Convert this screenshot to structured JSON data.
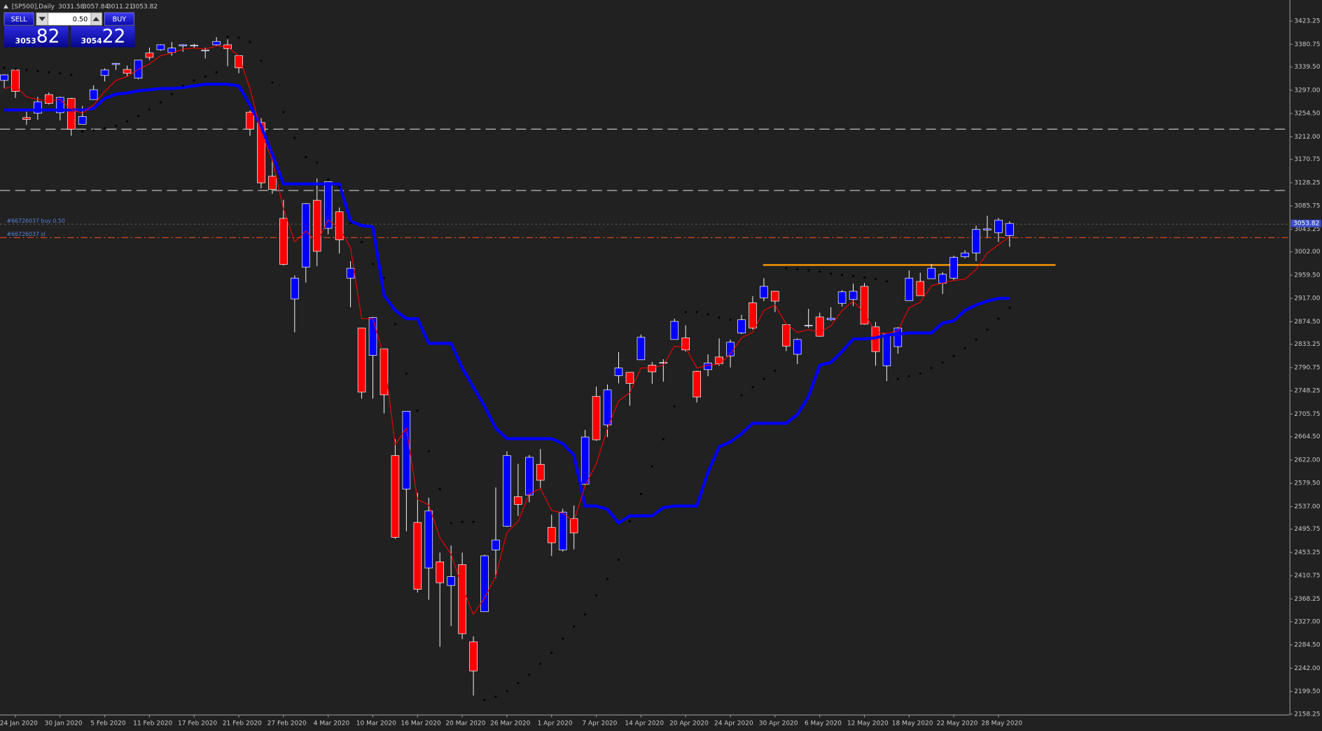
{
  "chart_data": {
    "type": "candlestick",
    "title": "[SP500],Daily",
    "categories": [
      null,
      "24 Jan 2020",
      null,
      null,
      null,
      "30 Jan 2020",
      null,
      null,
      null,
      "5 Feb 2020",
      null,
      null,
      null,
      "11 Feb 2020",
      null,
      null,
      null,
      "17 Feb 2020",
      null,
      null,
      null,
      "21 Feb 2020",
      null,
      null,
      null,
      "27 Feb 2020",
      null,
      null,
      null,
      "4 Mar 2020",
      null,
      null,
      null,
      "10 Mar 2020",
      null,
      null,
      null,
      "16 Mar 2020",
      null,
      null,
      null,
      "20 Mar 2020",
      null,
      null,
      null,
      "26 Mar 2020",
      null,
      null,
      null,
      "1 Apr 2020",
      null,
      null,
      null,
      "7 Apr 2020",
      null,
      null,
      null,
      "14 Apr 2020",
      null,
      null,
      null,
      "20 Apr 2020",
      null,
      null,
      null,
      "24 Apr 2020",
      null,
      null,
      null,
      "30 Apr 2020",
      null,
      null,
      null,
      "6 May 2020",
      null,
      null,
      null,
      "12 May 2020",
      null,
      null,
      null,
      "18 May 2020",
      null,
      null,
      null,
      "22 May 2020",
      null,
      null,
      null,
      "28 May 2020",
      null
    ],
    "open": [
      3315,
      3334,
      3247,
      3255,
      3289,
      3256,
      3282,
      3235,
      3280,
      3324,
      3344,
      3335,
      3319,
      3365,
      3371,
      3366,
      3378,
      3378,
      3370,
      3380,
      3380,
      3360,
      3257,
      3238,
      3140,
      3063,
      2916,
      2974,
      3096,
      3045,
      3075,
      2954,
      2863,
      2813,
      2825,
      2630,
      2569,
      2508,
      2425,
      2436,
      2393,
      2431,
      2290,
      2345,
      2458,
      2501,
      2555,
      2558,
      2614,
      2499,
      2458,
      2515,
      2578,
      2738,
      2686,
      2776,
      2782,
      2805,
      2795,
      2799,
      2842,
      2845,
      2784,
      2787,
      2810,
      2812,
      2854,
      2909,
      2918,
      2930,
      2869,
      2815,
      2868,
      2883,
      2878,
      2908,
      2915,
      2939,
      2865,
      2794,
      2829,
      2913,
      2948,
      2953,
      2945,
      2954,
      2993,
      3000,
      3042,
      3037,
      3031.58
    ],
    "high": [
      3326,
      3338,
      3258,
      3285,
      3293,
      3285,
      3283,
      3268,
      3306,
      3337,
      3347,
      3342,
      3352,
      3375,
      3381,
      3385,
      3381,
      3382,
      3375,
      3394,
      3390,
      3361,
      3260,
      3246,
      3182,
      3097,
      2959,
      3091,
      3136,
      3130,
      3083,
      2985,
      2863,
      2883,
      2825,
      2660,
      2711,
      2562,
      2553,
      2453,
      2466,
      2453,
      2300,
      2449,
      2572,
      2638,
      2615,
      2631,
      2642,
      2522,
      2533,
      2539,
      2677,
      2756,
      2760,
      2819,
      2782,
      2851,
      2801,
      2806,
      2880,
      2868,
      2785,
      2815,
      2844,
      2842,
      2887,
      2921,
      2954,
      2930,
      2869,
      2844,
      2898,
      2891,
      2901,
      2932,
      2944,
      2945,
      2874,
      2852,
      2865,
      2968,
      2964,
      2980,
      2965,
      2995,
      3005,
      3050,
      3068,
      3064,
      3057.84
    ],
    "low": [
      3301,
      3283,
      3234,
      3243,
      3271,
      3242,
      3214,
      3235,
      3280,
      3313,
      3334,
      3322,
      3317,
      3352,
      3369,
      3360,
      3367,
      3374,
      3355,
      3379,
      3341,
      3328,
      3214,
      3118,
      3108,
      2977,
      2855,
      2946,
      2976,
      3034,
      2999,
      2901,
      2734,
      2734,
      2707,
      2478,
      2492,
      2380,
      2367,
      2281,
      2319,
      2295,
      2192,
      2345,
      2407,
      2500,
      2520,
      2545,
      2571,
      2447,
      2455,
      2459,
      2574,
      2657,
      2664,
      2762,
      2721,
      2805,
      2761,
      2765,
      2842,
      2820,
      2727,
      2775,
      2794,
      2791,
      2852,
      2860,
      2912,
      2892,
      2821,
      2797,
      2863,
      2847,
      2876,
      2902,
      2903,
      2869,
      2794,
      2766,
      2816,
      2913,
      2922,
      2953,
      2925,
      2950,
      2990,
      2985,
      3028,
      3020,
      3011.21
    ],
    "close": [
      3325,
      3295,
      3244,
      3276,
      3273,
      3284,
      3226,
      3249,
      3298,
      3334,
      3346,
      3328,
      3352,
      3357,
      3380,
      3374,
      3380,
      3379,
      3370,
      3386,
      3373,
      3338,
      3226,
      3128,
      3116,
      2979,
      2954,
      3090,
      3003,
      3130,
      3024,
      2972,
      2746,
      2882,
      2741,
      2481,
      2711,
      2386,
      2529,
      2398,
      2409,
      2305,
      2237,
      2447,
      2476,
      2630,
      2541,
      2627,
      2585,
      2471,
      2527,
      2489,
      2664,
      2659,
      2750,
      2790,
      2762,
      2846,
      2783,
      2800,
      2875,
      2823,
      2737,
      2799,
      2798,
      2837,
      2878,
      2863,
      2939,
      2912,
      2830,
      2842,
      2868,
      2848,
      2881,
      2929,
      2930,
      2870,
      2820,
      2852,
      2863,
      2954,
      2922,
      2972,
      2961,
      2992,
      3000,
      3043,
      3044,
      3060,
      3053.82
    ],
    "up_color": "#0000ff",
    "down_color": "#ff0000",
    "wick_color": "#ffffff",
    "lines": [
      {
        "color": "#0000ff",
        "style": "thick",
        "values": [
          3261,
          3261,
          3261,
          3261,
          3261,
          3261,
          3261,
          3261,
          3264,
          3282,
          3290,
          3292,
          3296,
          3298,
          3300,
          3300,
          3302,
          3305,
          3308,
          3308,
          3308,
          3305,
          3270,
          3231,
          3180,
          3126,
          3126,
          3126,
          3126,
          3126,
          3126,
          3058,
          3050,
          3048,
          2923,
          2895,
          2880,
          2880,
          2835,
          2835,
          2835,
          2790,
          2755,
          2720,
          2680,
          2661,
          2661,
          2661,
          2661,
          2661,
          2652,
          2631,
          2538,
          2538,
          2532,
          2507,
          2520,
          2520,
          2520,
          2535,
          2538,
          2538,
          2538,
          2600,
          2646,
          2655,
          2670,
          2689,
          2689,
          2689,
          2689,
          2705,
          2738,
          2795,
          2800,
          2820,
          2843,
          2843,
          2845,
          2850,
          2852,
          2854,
          2854,
          2854,
          2872,
          2876,
          2895,
          2905,
          2912,
          2917,
          2917
        ]
      },
      {
        "color": "#ff0000",
        "style": "thin",
        "values": [
          3300,
          3305,
          3285,
          3280,
          3278,
          3280,
          3262,
          3255,
          3270,
          3295,
          3315,
          3322,
          3335,
          3345,
          3360,
          3365,
          3372,
          3374,
          3372,
          3378,
          3376,
          3360,
          3300,
          3220,
          3170,
          3080,
          3020,
          3040,
          3020,
          3060,
          3045,
          3010,
          2880,
          2880,
          2810,
          2650,
          2680,
          2550,
          2540,
          2480,
          2450,
          2390,
          2340,
          2370,
          2410,
          2490,
          2510,
          2560,
          2570,
          2530,
          2525,
          2510,
          2575,
          2615,
          2680,
          2730,
          2745,
          2790,
          2790,
          2795,
          2830,
          2827,
          2790,
          2795,
          2797,
          2815,
          2845,
          2855,
          2895,
          2905,
          2870,
          2855,
          2860,
          2855,
          2867,
          2895,
          2912,
          2890,
          2855,
          2853,
          2858,
          2900,
          2910,
          2940,
          2945,
          2950,
          2952,
          2970,
          3000,
          3015,
          3030
        ]
      }
    ],
    "sar": {
      "color": "#000000",
      "values": [
        3338,
        3336,
        3334,
        3332,
        3330,
        3328,
        3325,
        3222,
        3224,
        3228,
        3232,
        3240,
        3250,
        3262,
        3275,
        3290,
        3305,
        3315,
        3322,
        3330,
        3395,
        3393,
        3385,
        3351,
        3311,
        3257,
        3210,
        3175,
        3165,
        3134,
        3120,
        3054,
        3020,
        2980,
        2954,
        2870,
        2780,
        2712,
        2638,
        2569,
        2507,
        2509,
        2509,
        2184,
        2190,
        2200,
        2215,
        2230,
        2250,
        2270,
        2296,
        2318,
        2340,
        2375,
        2405,
        2440,
        2510,
        2560,
        2610,
        2660,
        2720,
        2892,
        2892,
        2888,
        2882,
        2878,
        2740,
        2755,
        2770,
        2785,
        2972,
        2970,
        2968,
        2966,
        2962,
        2960,
        2958,
        2955,
        2952,
        2948,
        2770,
        2775,
        2780,
        2790,
        2800,
        2812,
        2826,
        2842,
        2860,
        2880,
        2900
      ]
    },
    "hlines": [
      {
        "value": 3226,
        "color": "#d0d0d0",
        "style": "dashed"
      },
      {
        "value": 3114,
        "color": "#d0d0d0",
        "style": "dashed"
      },
      {
        "value": 2978,
        "color": "#ff9900",
        "style": "solid"
      }
    ],
    "orders": [
      {
        "label": "#66726037 buy 0.50",
        "value": 3052.5,
        "color": "#606060",
        "label_color": "#5a82d8",
        "style": "dotted"
      },
      {
        "label": "#66726037 sl",
        "value": 3028,
        "color": "#d2461e",
        "label_color": "#5a82d8",
        "style": "dashdot"
      }
    ],
    "ylim": [
      2156.6,
      3461.7
    ],
    "yticks": [
      3423.25,
      3380.75,
      {
        "value": 3339.5,
        "label": "3339.50"
      },
      {
        "value": 3297,
        "label": "3297.00"
      },
      {
        "value": 3254.5,
        "label": "3254.50"
      },
      {
        "value": 3212,
        "label": "3212.00"
      },
      3170.75,
      3128.25,
      3085.75,
      3043.25,
      {
        "value": 3002,
        "label": "3002.00"
      },
      {
        "value": 2959.5,
        "label": "2959.50"
      },
      {
        "value": 2917,
        "label": "2917.00"
      },
      {
        "value": 2874.5,
        "label": "2874.50"
      },
      2833.25,
      2790.75,
      2748.25,
      2705.75,
      {
        "value": 2664.5,
        "label": "2664.50"
      },
      {
        "value": 2622,
        "label": "2622.00"
      },
      {
        "value": 2579.5,
        "label": "2579.50"
      },
      {
        "value": 2537,
        "label": "2537.00"
      },
      2495.75,
      2453.25,
      2410.75,
      2368.25,
      {
        "value": 2327,
        "label": "2327.00"
      },
      {
        "value": 2284.5,
        "label": "2284.50"
      },
      {
        "value": 2242,
        "label": "2242.00"
      },
      {
        "value": 2199.5,
        "label": "2199.50"
      },
      2158.25
    ],
    "grid": false
  },
  "trade_panel": {
    "sell": "SELL",
    "lot": "0.50",
    "buy": "BUY",
    "bid_big": "3053",
    "bid_small": "82",
    "ask_big": "3054",
    "ask_small": "22"
  }
}
